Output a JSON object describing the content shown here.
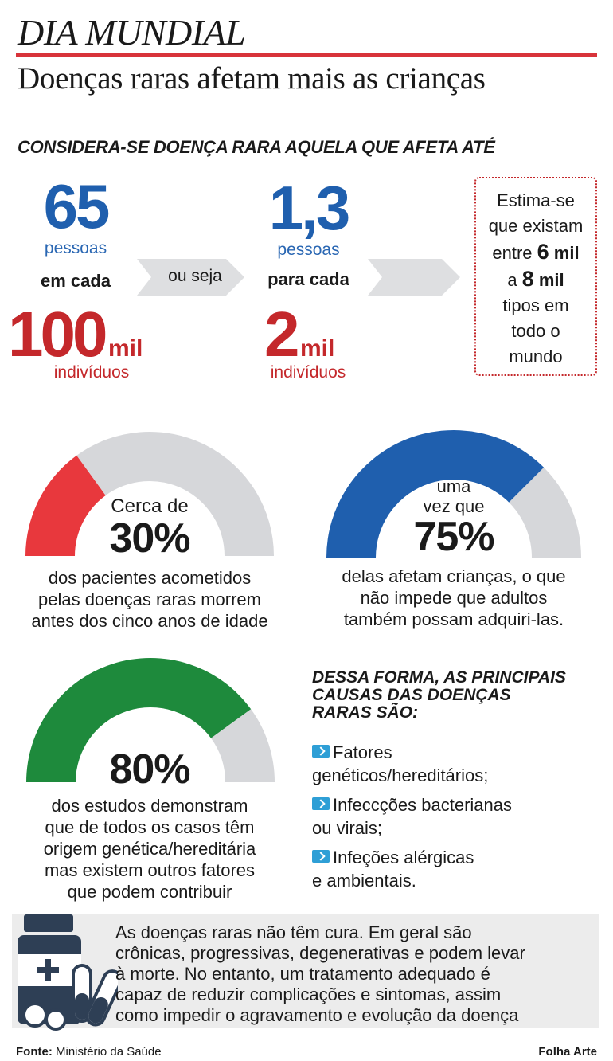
{
  "header": {
    "kicker": "DIA MUNDIAL",
    "title": "Doenças raras afetam mais as crianças"
  },
  "definition": {
    "lead": "CONSIDERA-SE DOENÇA RARA AQUELA QUE AFETA ATÉ",
    "first": {
      "number": "65",
      "unit": "pessoas",
      "connector": "em cada",
      "base_number": "100",
      "base_mil": "mil",
      "base_unit": "indivíduos"
    },
    "arrow_label": "ou seja",
    "second": {
      "number": "1,3",
      "unit": "pessoas",
      "connector": "para cada",
      "base_number": "2",
      "base_mil": "mil",
      "base_unit": "indivíduos"
    },
    "estimate": {
      "l1": "Estima-se",
      "l2": "que existam",
      "l3a": "entre ",
      "l3b": "6",
      "l3c": " mil",
      "l4a": "a ",
      "l4b": "8",
      "l4c": " mil",
      "l5": "tipos em",
      "l6": "todo o",
      "l7": "mundo"
    }
  },
  "gauges": [
    {
      "pre": "Cerca de",
      "pre2": "",
      "value": 30,
      "label": "30%",
      "color": "#e8383d",
      "lines": [
        "dos pacientes acometidos",
        "pelas doenças raras morrem",
        "antes dos cinco anos de idade"
      ]
    },
    {
      "pre": "uma",
      "pre2": "vez que",
      "value": 75,
      "label": "75%",
      "color": "#1f5fae",
      "lines": [
        "delas afetam crianças, o que",
        "não impede que adultos",
        "também possam adquiri-las."
      ]
    },
    {
      "pre": "",
      "pre2": "",
      "value": 80,
      "label": "80%",
      "color": "#1e8a3c",
      "lines": [
        "dos estudos demonstram",
        "que de todos os casos têm",
        "origem genética/hereditária",
        "mas existem outros fatores",
        "que podem contribuir"
      ]
    }
  ],
  "gauge_track_color": "#d6d7da",
  "causes": {
    "heading": [
      "DESSA FORMA, AS PRINCIPAIS",
      "CAUSAS DAS DOENÇAS",
      "RARAS SÃO:"
    ],
    "items": [
      {
        "a": "Fatores",
        "b": "genéticos/hereditários;"
      },
      {
        "a": "Infeccções bacterianas",
        "b": "ou virais;"
      },
      {
        "a": "Infeções alérgicas",
        "b": "e ambientais."
      }
    ]
  },
  "note": {
    "lines": [
      "As doenças raras não têm cura. Em geral são",
      "crônicas, progressivas, degenerativas e podem levar",
      "à morte. No entanto, um tratamento adequado é",
      "capaz de reduzir complicações e sintomas, assim",
      "como impedir o agravamento e evolução da doença"
    ]
  },
  "footer": {
    "source_label": "Fonte:",
    "source": " Ministério da Saúde",
    "credit": "Folha Arte"
  }
}
